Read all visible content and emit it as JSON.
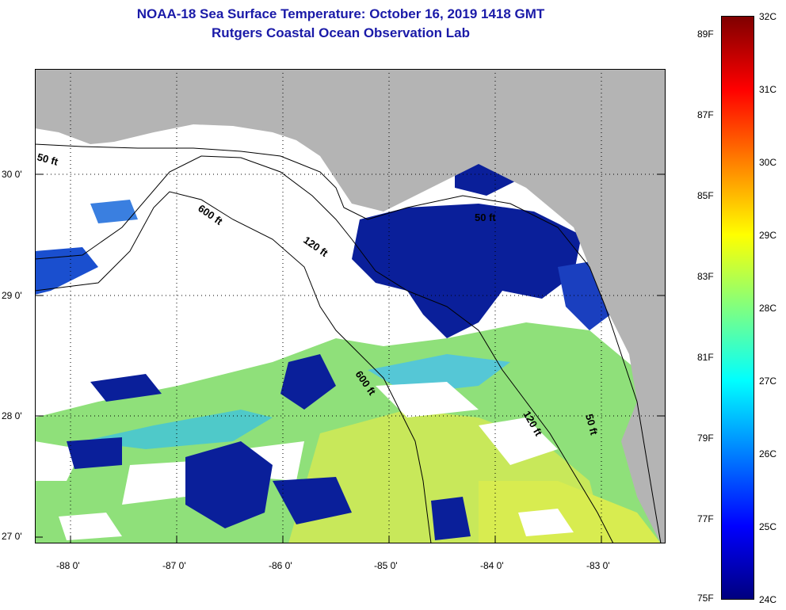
{
  "title": "NOAA-18 Sea Surface Temperature:  October 16, 2019 1418 GMT",
  "subtitle": "Rutgers Coastal Ocean Observation Lab",
  "lat_labels": [
    "30 0'",
    "29 0'",
    "28 0'",
    "27 0'"
  ],
  "lon_labels": [
    "-88 0'",
    "-87 0'",
    "-86 0'",
    "-85 0'",
    "-84 0'",
    "-83 0'"
  ],
  "contour_labels": {
    "c50_west": "50 ft",
    "c600_north": "600 ft",
    "c120_north": "120 ft",
    "c50_east": "50 ft",
    "c600_south": "600 ft",
    "c120_south": "120 ft",
    "c50_south": "50 ft"
  },
  "colorbar": {
    "celsius": [
      "32C",
      "31C",
      "30C",
      "29C",
      "28C",
      "27C",
      "26C",
      "25C",
      "24C"
    ],
    "fahrenheit": [
      "89F",
      "87F",
      "85F",
      "83F",
      "81F",
      "79F",
      "77F",
      "75F"
    ],
    "colors": [
      "#7f0000",
      "#ff0000",
      "#ff8000",
      "#ffff00",
      "#80ff80",
      "#00ffff",
      "#0080ff",
      "#0000ff",
      "#00007f"
    ]
  },
  "colors": {
    "land": "#b4b4b4",
    "no_data": "#ffffff",
    "cold_water": "#0a1f9a",
    "title": "#1a1aa8"
  }
}
